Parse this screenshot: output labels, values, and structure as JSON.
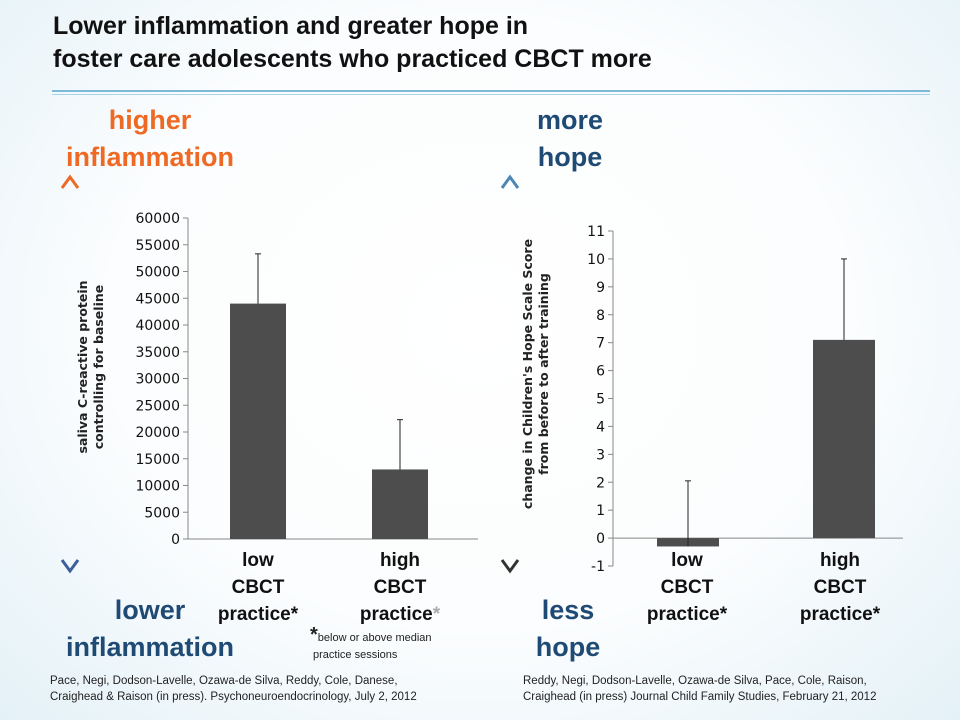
{
  "title_line1": "Lower inflammation and greater hope in",
  "title_line2": "foster care adolescents who practiced CBCT more",
  "left": {
    "top_line1": "higher",
    "top_line2": "inflammation",
    "bottom_line1": "lower",
    "bottom_line2": "inflammation",
    "citation_line1": "Pace, Negi, Dodson-Lavelle, Ozawa-de Silva, Reddy, Cole, Danese,",
    "citation_line2": "Craighead & Raison (in press). Psychoneuroendocrinology, July 2, 2012"
  },
  "right": {
    "top_line1": "more",
    "top_line2": "hope",
    "bottom_line1": "less",
    "bottom_line2": "hope",
    "citation_line1": "Reddy, Negi, Dodson-Lavelle, Ozawa-de Silva, Pace, Cole, Raison,",
    "citation_line2": "Craighead (in press) Journal Child Family Studies, February 21, 2012"
  },
  "footnote": {
    "star": "*",
    "line1": "below or above median",
    "line2": "practice sessions"
  },
  "colors": {
    "orange": "#ee6a24",
    "navy": "#1e4a73",
    "bar": "#4d4d4d",
    "arrow_top_orange": "#ee6a24",
    "arrow_bottom_blue": "#3a5f9c",
    "arrow_top_blue": "#4b86b4",
    "arrow_bottom_dark": "#333333"
  },
  "chart_data": [
    {
      "type": "bar",
      "ylabel_line1": "saliva C-reactive protein",
      "ylabel_line2": "controlling for baseline",
      "categories": [
        {
          "line1": "low",
          "line2": "CBCT",
          "line3": "practice",
          "mark": "*"
        },
        {
          "line1": "high",
          "line2": "CBCT",
          "line3": "practice",
          "mark": "*"
        }
      ],
      "values": [
        44000,
        13000
      ],
      "error_upper": [
        53300,
        22300
      ],
      "ylim": [
        0,
        60000
      ],
      "yticks": [
        0,
        5000,
        10000,
        15000,
        20000,
        25000,
        30000,
        35000,
        40000,
        45000,
        50000,
        55000,
        60000
      ],
      "ytick_labels": [
        "0",
        "5000",
        "10000",
        "15000",
        "20000",
        "25000",
        "30000",
        "35000",
        "40000",
        "45000",
        "50000",
        "55000",
        "60000"
      ],
      "tick_suffix": "",
      "grid": false
    },
    {
      "type": "bar",
      "ylabel_line1": "change in Children's Hope Scale Score",
      "ylabel_line2": "from before to after training",
      "categories": [
        {
          "line1": "low",
          "line2": "CBCT",
          "line3": "practice",
          "mark": "*"
        },
        {
          "line1": "high",
          "line2": "CBCT",
          "line3": "practice",
          "mark": "*"
        }
      ],
      "values": [
        -0.3,
        7.1
      ],
      "error_upper": [
        2.05,
        10.0
      ],
      "ylim": [
        -1,
        11
      ],
      "yticks": [
        -1,
        0,
        1,
        2,
        3,
        4,
        5,
        6,
        7,
        8,
        9,
        10,
        11
      ],
      "ytick_labels": [
        "-1",
        "0",
        "1",
        "2",
        "3",
        "4",
        "5",
        "6",
        "7",
        "8",
        "9",
        "10",
        "11"
      ],
      "tick_suffix": "",
      "grid": false
    }
  ]
}
